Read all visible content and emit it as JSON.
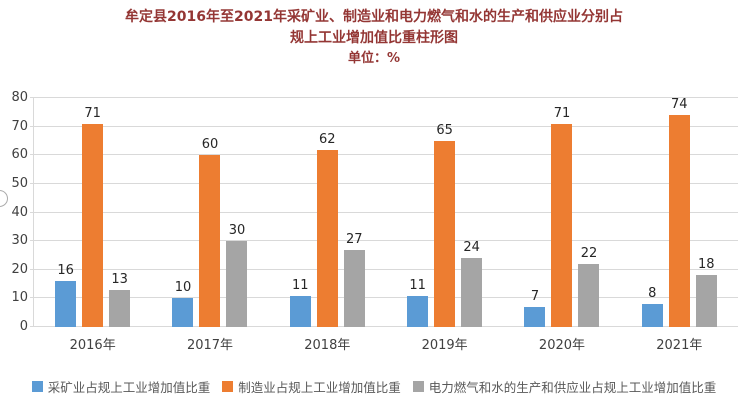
{
  "title": {
    "line1": "牟定县2016年至2021年采矿业、制造业和电力燃气和水的生产和供应业分别占",
    "line2": "规上工业增加值比重柱形图",
    "unit": "单位：%"
  },
  "colors": {
    "title_text": "#943634",
    "axis_text": "#404040",
    "data_label_text": "#262626",
    "gridline": "#D9D9D9",
    "background": "#FFFFFF"
  },
  "chart_data": {
    "type": "bar",
    "title": "牟定县2016年至2021年采矿业、制造业和电力燃气和水的生产和供应业分别占规上工业增加值比重柱形图",
    "unit_label": "单位：%",
    "categories": [
      "2016年",
      "2017年",
      "2018年",
      "2019年",
      "2020年",
      "2021年"
    ],
    "series": [
      {
        "name": "采矿业占规上工业增加值比重",
        "color": "#5B9BD5",
        "values": [
          16,
          10,
          11,
          11,
          7,
          8
        ]
      },
      {
        "name": "制造业占规上工业增加值比重",
        "color": "#ED7D31",
        "values": [
          71,
          60,
          62,
          65,
          71,
          74
        ]
      },
      {
        "name": "电力燃气和水的生产和供应业占规上工业增加值比重",
        "color": "#A5A5A5",
        "values": [
          13,
          30,
          27,
          24,
          22,
          18
        ]
      }
    ],
    "ylim": [
      0,
      80
    ],
    "yticks": [
      0,
      10,
      20,
      30,
      40,
      50,
      60,
      70,
      80
    ],
    "grid": true,
    "data_labels": true,
    "legend_position": "bottom"
  }
}
